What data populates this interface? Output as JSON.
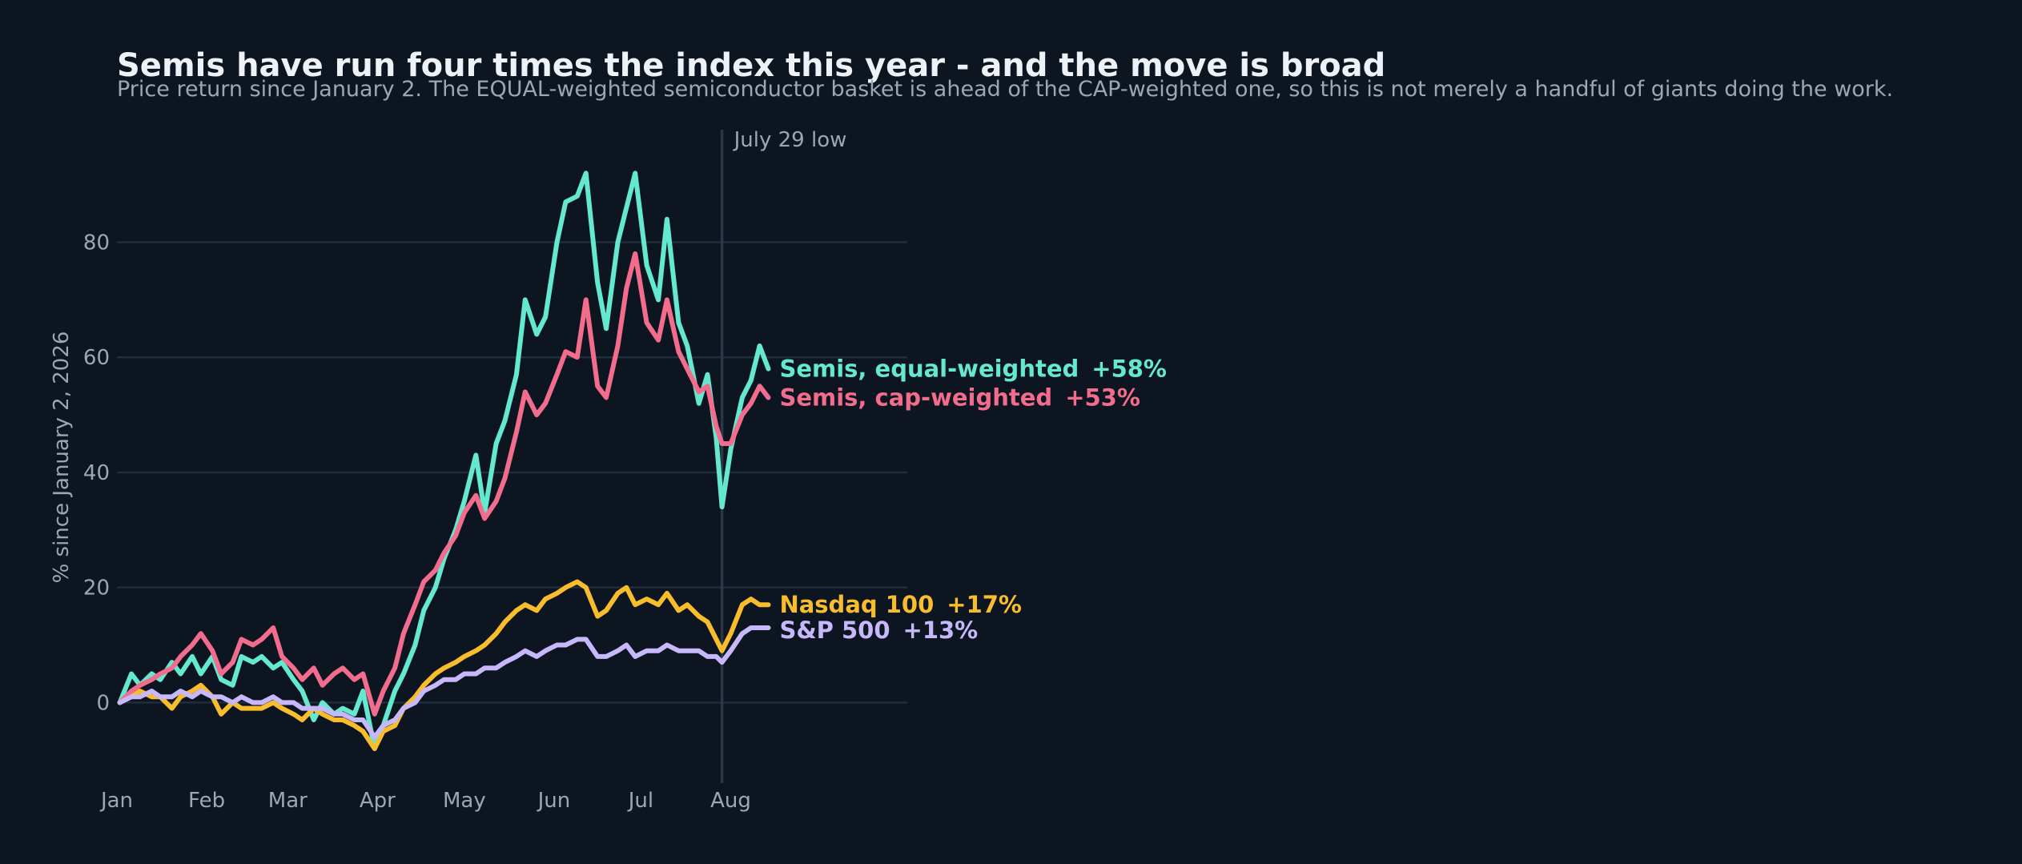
{
  "chart_data": {
    "type": "line",
    "title": "Semis have run four times the index this year - and the move is broad",
    "subtitle": "Price return since January 2. The EQUAL-weighted semiconductor basket is ahead of the CAP-weighted one, so this is not merely a handful of giants doing the work.",
    "ylabel": "% since January 2, 2026",
    "xlabel": "",
    "x_ticks": [
      {
        "label": "Jan",
        "date": "2026-01-01"
      },
      {
        "label": "Feb",
        "date": "2026-02-01"
      },
      {
        "label": "Mar",
        "date": "2026-03-01"
      },
      {
        "label": "Apr",
        "date": "2026-04-01"
      },
      {
        "label": "May",
        "date": "2026-05-01"
      },
      {
        "label": "Jun",
        "date": "2026-06-01"
      },
      {
        "label": "Jul",
        "date": "2026-07-01"
      },
      {
        "label": "Aug",
        "date": "2026-08-01"
      }
    ],
    "y_ticks": [
      0,
      20,
      40,
      60,
      80
    ],
    "xlim": [
      "2026-01-01",
      "2026-10-01"
    ],
    "ylim": [
      -14,
      99
    ],
    "grid": "horizontal",
    "annotation": {
      "label": "July 29 low",
      "date": "2026-07-29"
    },
    "series": [
      {
        "name": "Semis, equal-weighted",
        "end_label": "+58%",
        "color": "#64e8cf",
        "points": [
          [
            "2026-01-02",
            0
          ],
          [
            "2026-01-06",
            5
          ],
          [
            "2026-01-09",
            3
          ],
          [
            "2026-01-13",
            5
          ],
          [
            "2026-01-16",
            4
          ],
          [
            "2026-01-20",
            7
          ],
          [
            "2026-01-23",
            5
          ],
          [
            "2026-01-27",
            8
          ],
          [
            "2026-01-30",
            5
          ],
          [
            "2026-02-03",
            8
          ],
          [
            "2026-02-06",
            4
          ],
          [
            "2026-02-10",
            3
          ],
          [
            "2026-02-13",
            8
          ],
          [
            "2026-02-17",
            7
          ],
          [
            "2026-02-20",
            8
          ],
          [
            "2026-02-24",
            6
          ],
          [
            "2026-02-27",
            7
          ],
          [
            "2026-03-03",
            4
          ],
          [
            "2026-03-06",
            2
          ],
          [
            "2026-03-10",
            -3
          ],
          [
            "2026-03-13",
            0
          ],
          [
            "2026-03-17",
            -2
          ],
          [
            "2026-03-20",
            -1
          ],
          [
            "2026-03-24",
            -2
          ],
          [
            "2026-03-27",
            2
          ],
          [
            "2026-03-31",
            -8
          ],
          [
            "2026-04-03",
            -4
          ],
          [
            "2026-04-07",
            2
          ],
          [
            "2026-04-10",
            5
          ],
          [
            "2026-04-14",
            10
          ],
          [
            "2026-04-17",
            16
          ],
          [
            "2026-04-21",
            20
          ],
          [
            "2026-04-24",
            25
          ],
          [
            "2026-04-28",
            30
          ],
          [
            "2026-05-01",
            35
          ],
          [
            "2026-05-05",
            43
          ],
          [
            "2026-05-08",
            33
          ],
          [
            "2026-05-12",
            45
          ],
          [
            "2026-05-15",
            49
          ],
          [
            "2026-05-19",
            57
          ],
          [
            "2026-05-22",
            70
          ],
          [
            "2026-05-26",
            64
          ],
          [
            "2026-05-29",
            67
          ],
          [
            "2026-06-02",
            80
          ],
          [
            "2026-06-05",
            87
          ],
          [
            "2026-06-09",
            88
          ],
          [
            "2026-06-12",
            92
          ],
          [
            "2026-06-16",
            73
          ],
          [
            "2026-06-19",
            65
          ],
          [
            "2026-06-23",
            80
          ],
          [
            "2026-06-26",
            86
          ],
          [
            "2026-06-29",
            92
          ],
          [
            "2026-07-03",
            76
          ],
          [
            "2026-07-07",
            70
          ],
          [
            "2026-07-10",
            84
          ],
          [
            "2026-07-14",
            66
          ],
          [
            "2026-07-17",
            62
          ],
          [
            "2026-07-21",
            52
          ],
          [
            "2026-07-24",
            57
          ],
          [
            "2026-07-27",
            46
          ],
          [
            "2026-07-29",
            34
          ],
          [
            "2026-08-01",
            44
          ],
          [
            "2026-08-05",
            53
          ],
          [
            "2026-08-08",
            56
          ],
          [
            "2026-08-11",
            62
          ],
          [
            "2026-08-14",
            58
          ]
        ]
      },
      {
        "name": "Semis, cap-weighted",
        "end_label": "+53%",
        "color": "#f26d8d",
        "points": [
          [
            "2026-01-02",
            0
          ],
          [
            "2026-01-06",
            2
          ],
          [
            "2026-01-09",
            3
          ],
          [
            "2026-01-13",
            4
          ],
          [
            "2026-01-16",
            5
          ],
          [
            "2026-01-20",
            6
          ],
          [
            "2026-01-23",
            8
          ],
          [
            "2026-01-27",
            10
          ],
          [
            "2026-01-30",
            12
          ],
          [
            "2026-02-03",
            9
          ],
          [
            "2026-02-06",
            5
          ],
          [
            "2026-02-10",
            7
          ],
          [
            "2026-02-13",
            11
          ],
          [
            "2026-02-17",
            10
          ],
          [
            "2026-02-20",
            11
          ],
          [
            "2026-02-24",
            13
          ],
          [
            "2026-02-27",
            8
          ],
          [
            "2026-03-03",
            6
          ],
          [
            "2026-03-06",
            4
          ],
          [
            "2026-03-10",
            6
          ],
          [
            "2026-03-13",
            3
          ],
          [
            "2026-03-17",
            5
          ],
          [
            "2026-03-20",
            6
          ],
          [
            "2026-03-24",
            4
          ],
          [
            "2026-03-27",
            5
          ],
          [
            "2026-03-31",
            -2
          ],
          [
            "2026-04-03",
            2
          ],
          [
            "2026-04-07",
            6
          ],
          [
            "2026-04-10",
            12
          ],
          [
            "2026-04-14",
            17
          ],
          [
            "2026-04-17",
            21
          ],
          [
            "2026-04-21",
            23
          ],
          [
            "2026-04-24",
            26
          ],
          [
            "2026-04-28",
            29
          ],
          [
            "2026-05-01",
            33
          ],
          [
            "2026-05-05",
            36
          ],
          [
            "2026-05-08",
            32
          ],
          [
            "2026-05-12",
            35
          ],
          [
            "2026-05-15",
            39
          ],
          [
            "2026-05-19",
            47
          ],
          [
            "2026-05-22",
            54
          ],
          [
            "2026-05-26",
            50
          ],
          [
            "2026-05-29",
            52
          ],
          [
            "2026-06-02",
            57
          ],
          [
            "2026-06-05",
            61
          ],
          [
            "2026-06-09",
            60
          ],
          [
            "2026-06-12",
            70
          ],
          [
            "2026-06-16",
            55
          ],
          [
            "2026-06-19",
            53
          ],
          [
            "2026-06-23",
            62
          ],
          [
            "2026-06-26",
            72
          ],
          [
            "2026-06-29",
            78
          ],
          [
            "2026-07-03",
            66
          ],
          [
            "2026-07-07",
            63
          ],
          [
            "2026-07-10",
            70
          ],
          [
            "2026-07-14",
            61
          ],
          [
            "2026-07-17",
            58
          ],
          [
            "2026-07-21",
            54
          ],
          [
            "2026-07-24",
            55
          ],
          [
            "2026-07-27",
            48
          ],
          [
            "2026-07-29",
            45
          ],
          [
            "2026-08-01",
            45
          ],
          [
            "2026-08-05",
            50
          ],
          [
            "2026-08-08",
            52
          ],
          [
            "2026-08-11",
            55
          ],
          [
            "2026-08-14",
            53
          ]
        ]
      },
      {
        "name": "Nasdaq 100",
        "end_label": "+17%",
        "color": "#f7bd2c",
        "points": [
          [
            "2026-01-02",
            0
          ],
          [
            "2026-01-06",
            1
          ],
          [
            "2026-01-09",
            2
          ],
          [
            "2026-01-13",
            1
          ],
          [
            "2026-01-16",
            1
          ],
          [
            "2026-01-20",
            -1
          ],
          [
            "2026-01-23",
            1
          ],
          [
            "2026-01-27",
            2
          ],
          [
            "2026-01-30",
            3
          ],
          [
            "2026-02-03",
            1
          ],
          [
            "2026-02-06",
            -2
          ],
          [
            "2026-02-10",
            0
          ],
          [
            "2026-02-13",
            -1
          ],
          [
            "2026-02-17",
            -1
          ],
          [
            "2026-02-20",
            -1
          ],
          [
            "2026-02-24",
            0
          ],
          [
            "2026-02-27",
            -1
          ],
          [
            "2026-03-03",
            -2
          ],
          [
            "2026-03-06",
            -3
          ],
          [
            "2026-03-10",
            -1
          ],
          [
            "2026-03-13",
            -2
          ],
          [
            "2026-03-17",
            -3
          ],
          [
            "2026-03-20",
            -3
          ],
          [
            "2026-03-24",
            -4
          ],
          [
            "2026-03-27",
            -5
          ],
          [
            "2026-03-31",
            -8
          ],
          [
            "2026-04-03",
            -5
          ],
          [
            "2026-04-07",
            -4
          ],
          [
            "2026-04-10",
            -1
          ],
          [
            "2026-04-14",
            1
          ],
          [
            "2026-04-17",
            3
          ],
          [
            "2026-04-21",
            5
          ],
          [
            "2026-04-24",
            6
          ],
          [
            "2026-04-28",
            7
          ],
          [
            "2026-05-01",
            8
          ],
          [
            "2026-05-05",
            9
          ],
          [
            "2026-05-08",
            10
          ],
          [
            "2026-05-12",
            12
          ],
          [
            "2026-05-15",
            14
          ],
          [
            "2026-05-19",
            16
          ],
          [
            "2026-05-22",
            17
          ],
          [
            "2026-05-26",
            16
          ],
          [
            "2026-05-29",
            18
          ],
          [
            "2026-06-02",
            19
          ],
          [
            "2026-06-05",
            20
          ],
          [
            "2026-06-09",
            21
          ],
          [
            "2026-06-12",
            20
          ],
          [
            "2026-06-16",
            15
          ],
          [
            "2026-06-19",
            16
          ],
          [
            "2026-06-23",
            19
          ],
          [
            "2026-06-26",
            20
          ],
          [
            "2026-06-29",
            17
          ],
          [
            "2026-07-03",
            18
          ],
          [
            "2026-07-07",
            17
          ],
          [
            "2026-07-10",
            19
          ],
          [
            "2026-07-14",
            16
          ],
          [
            "2026-07-17",
            17
          ],
          [
            "2026-07-21",
            15
          ],
          [
            "2026-07-24",
            14
          ],
          [
            "2026-07-27",
            11
          ],
          [
            "2026-07-29",
            9
          ],
          [
            "2026-08-01",
            12
          ],
          [
            "2026-08-05",
            17
          ],
          [
            "2026-08-08",
            18
          ],
          [
            "2026-08-11",
            17
          ],
          [
            "2026-08-14",
            17
          ]
        ]
      },
      {
        "name": "S&P 500",
        "end_label": "+13%",
        "color": "#c7b8fb",
        "points": [
          [
            "2026-01-02",
            0
          ],
          [
            "2026-01-06",
            1
          ],
          [
            "2026-01-09",
            1
          ],
          [
            "2026-01-13",
            2
          ],
          [
            "2026-01-16",
            1
          ],
          [
            "2026-01-20",
            1
          ],
          [
            "2026-01-23",
            2
          ],
          [
            "2026-01-27",
            1
          ],
          [
            "2026-01-30",
            2
          ],
          [
            "2026-02-03",
            1
          ],
          [
            "2026-02-06",
            1
          ],
          [
            "2026-02-10",
            0
          ],
          [
            "2026-02-13",
            1
          ],
          [
            "2026-02-17",
            0
          ],
          [
            "2026-02-20",
            0
          ],
          [
            "2026-02-24",
            1
          ],
          [
            "2026-02-27",
            0
          ],
          [
            "2026-03-03",
            0
          ],
          [
            "2026-03-06",
            -1
          ],
          [
            "2026-03-10",
            -1
          ],
          [
            "2026-03-13",
            -1
          ],
          [
            "2026-03-17",
            -2
          ],
          [
            "2026-03-20",
            -2
          ],
          [
            "2026-03-24",
            -3
          ],
          [
            "2026-03-27",
            -3
          ],
          [
            "2026-03-31",
            -6
          ],
          [
            "2026-04-03",
            -4
          ],
          [
            "2026-04-07",
            -3
          ],
          [
            "2026-04-10",
            -1
          ],
          [
            "2026-04-14",
            0
          ],
          [
            "2026-04-17",
            2
          ],
          [
            "2026-04-21",
            3
          ],
          [
            "2026-04-24",
            4
          ],
          [
            "2026-04-28",
            4
          ],
          [
            "2026-05-01",
            5
          ],
          [
            "2026-05-05",
            5
          ],
          [
            "2026-05-08",
            6
          ],
          [
            "2026-05-12",
            6
          ],
          [
            "2026-05-15",
            7
          ],
          [
            "2026-05-19",
            8
          ],
          [
            "2026-05-22",
            9
          ],
          [
            "2026-05-26",
            8
          ],
          [
            "2026-05-29",
            9
          ],
          [
            "2026-06-02",
            10
          ],
          [
            "2026-06-05",
            10
          ],
          [
            "2026-06-09",
            11
          ],
          [
            "2026-06-12",
            11
          ],
          [
            "2026-06-16",
            8
          ],
          [
            "2026-06-19",
            8
          ],
          [
            "2026-06-23",
            9
          ],
          [
            "2026-06-26",
            10
          ],
          [
            "2026-06-29",
            8
          ],
          [
            "2026-07-03",
            9
          ],
          [
            "2026-07-07",
            9
          ],
          [
            "2026-07-10",
            10
          ],
          [
            "2026-07-14",
            9
          ],
          [
            "2026-07-17",
            9
          ],
          [
            "2026-07-21",
            9
          ],
          [
            "2026-07-24",
            8
          ],
          [
            "2026-07-27",
            8
          ],
          [
            "2026-07-29",
            7
          ],
          [
            "2026-08-01",
            9
          ],
          [
            "2026-08-05",
            12
          ],
          [
            "2026-08-08",
            13
          ],
          [
            "2026-08-11",
            13
          ],
          [
            "2026-08-14",
            13
          ]
        ]
      }
    ]
  },
  "colors": {
    "background": "#0d1520",
    "grid": "#1f2d3c",
    "text": "#9aa7b6",
    "title": "#eef2f7"
  }
}
